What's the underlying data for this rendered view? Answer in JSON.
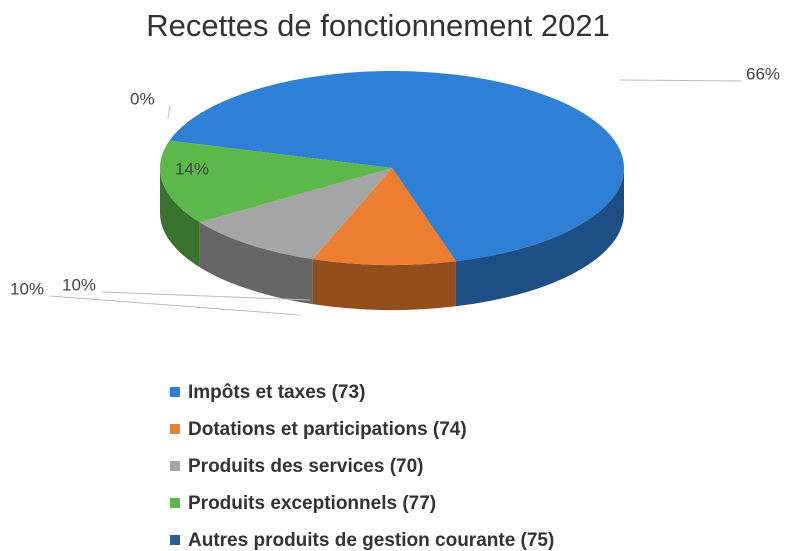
{
  "chart_data": {
    "type": "pie",
    "title": "Recettes de fonctionnement 2021",
    "categories": [
      "Impôts et taxes (73)",
      "Dotations et participations (74)",
      "Produits des services (70)",
      "Produits exceptionnels (77)",
      "Autres produits de gestion courante (75)"
    ],
    "values": [
      66,
      10,
      10,
      14,
      0
    ],
    "value_labels": [
      "66%",
      "10%",
      "10%",
      "14%",
      "0%"
    ],
    "colors": [
      "#2e7fd6",
      "#ed7d31",
      "#a5a5a5",
      "#5cb84a",
      "#255e91"
    ],
    "legend": "bottom"
  }
}
